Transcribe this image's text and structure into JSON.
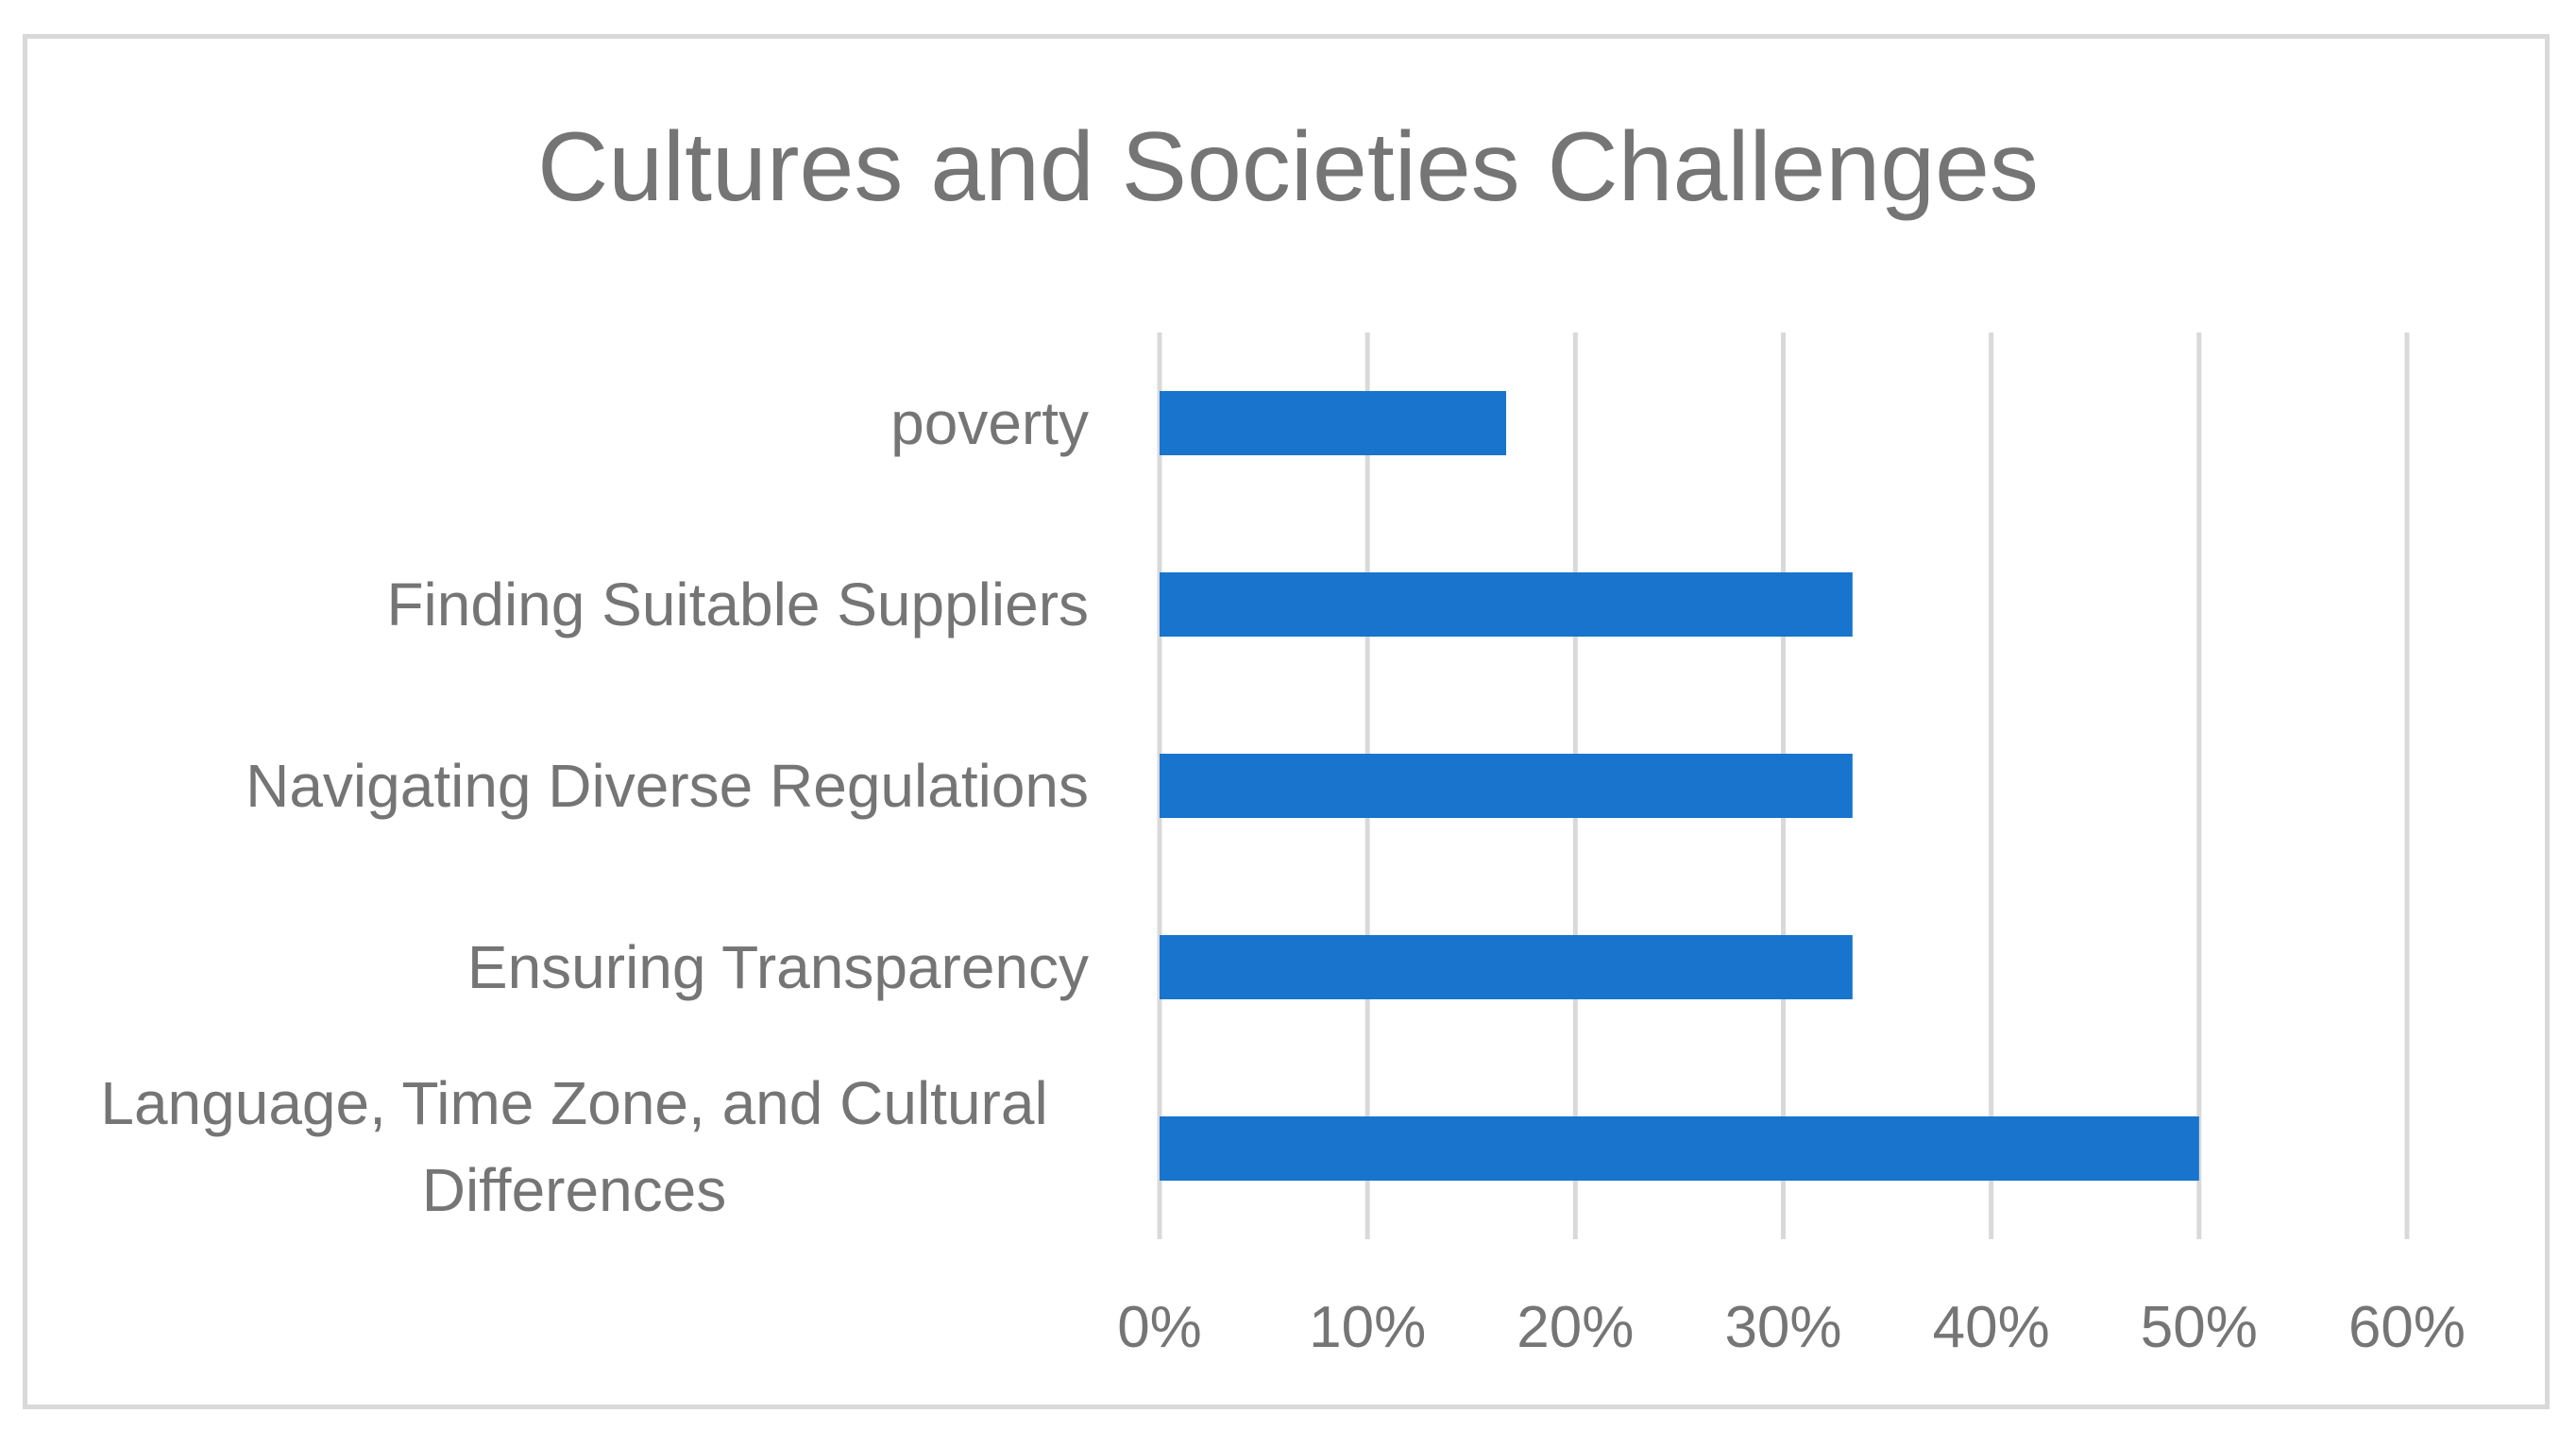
{
  "chart_data": {
    "type": "bar",
    "orientation": "horizontal",
    "title": "Cultures and Societies Challenges",
    "xlabel": "",
    "ylabel": "",
    "categories": [
      "poverty",
      "Finding Suitable Suppliers",
      "Navigating Diverse Regulations",
      "Ensuring Transparency",
      "Language, Time Zone, and Cultural Differences"
    ],
    "values": [
      0.1667,
      0.3333,
      0.3333,
      0.3333,
      0.5
    ],
    "xlim": [
      0,
      0.6
    ],
    "x_ticks": [
      "0%",
      "10%",
      "20%",
      "30%",
      "40%",
      "50%",
      "60%"
    ],
    "grid": true,
    "legend": "none",
    "bar_color": "#1874cd"
  }
}
